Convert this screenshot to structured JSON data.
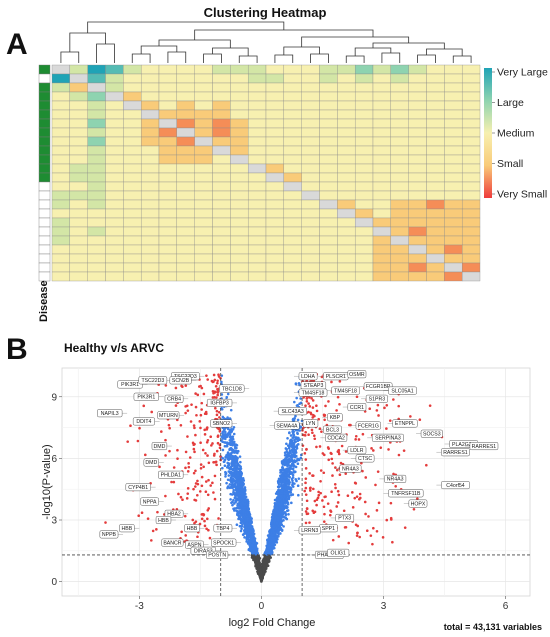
{
  "panel_a_letter": "A",
  "panel_b_letter": "B",
  "chart_data": [
    {
      "type": "heatmap",
      "title": "Clustering Heatmap",
      "annotation_label": "Disease",
      "legend": [
        "Very Large",
        "Large",
        "Medium",
        "Small",
        "Very Small"
      ],
      "colors": {
        "very_large": "#1fa3b6",
        "large": "#8ed3b0",
        "medium": "#f7f0b0",
        "small": "#f9cb79",
        "very_small": "#ee3b3b",
        "diagonal": "#d9d9d9",
        "disease_group": "#1e8c32",
        "control_group": "#ffffff"
      },
      "rows": 24,
      "cols": 24,
      "row_groups": [
        "disease",
        "control",
        "disease",
        "disease",
        "disease",
        "disease",
        "disease",
        "disease",
        "disease",
        "disease",
        "disease",
        "disease",
        "disease",
        "control",
        "control",
        "control",
        "control",
        "control",
        "control",
        "control",
        "control",
        "control",
        "control",
        "control"
      ],
      "matrix": [
        [
          5,
          3,
          0,
          1,
          3,
          4,
          4,
          4,
          4,
          3,
          3,
          3,
          4,
          4,
          4,
          3,
          3,
          2,
          3,
          2,
          3,
          4,
          4,
          4
        ],
        [
          0,
          2,
          1,
          3,
          4,
          4,
          4,
          4,
          4,
          4,
          4,
          3,
          3,
          4,
          4,
          3,
          4,
          3,
          4,
          3,
          4,
          4,
          4,
          4
        ],
        [
          3,
          5,
          2,
          3,
          4,
          4,
          4,
          4,
          4,
          4,
          4,
          4,
          4,
          4,
          4,
          4,
          4,
          4,
          4,
          4,
          4,
          4,
          4,
          4
        ],
        [
          4,
          3,
          2,
          3,
          5,
          4,
          4,
          4,
          4,
          4,
          4,
          4,
          4,
          4,
          4,
          4,
          4,
          4,
          4,
          4,
          4,
          4,
          4,
          4
        ],
        [
          4,
          4,
          3,
          4,
          4,
          5,
          4,
          5,
          4,
          5,
          4,
          4,
          4,
          4,
          4,
          4,
          4,
          4,
          4,
          4,
          4,
          4,
          4,
          4
        ],
        [
          4,
          4,
          3,
          4,
          4,
          4,
          5,
          5,
          5,
          5,
          4,
          4,
          4,
          4,
          4,
          4,
          4,
          4,
          4,
          4,
          4,
          4,
          4,
          4
        ],
        [
          4,
          4,
          2,
          4,
          4,
          5,
          5,
          6,
          5,
          6,
          5,
          4,
          4,
          4,
          4,
          4,
          4,
          4,
          4,
          4,
          4,
          4,
          4,
          4
        ],
        [
          4,
          4,
          3,
          4,
          4,
          5,
          6,
          5,
          5,
          6,
          5,
          4,
          4,
          4,
          4,
          4,
          4,
          4,
          4,
          4,
          4,
          4,
          4,
          4
        ],
        [
          4,
          4,
          2,
          4,
          4,
          5,
          5,
          6,
          5,
          5,
          5,
          4,
          4,
          4,
          4,
          4,
          4,
          4,
          4,
          4,
          4,
          4,
          4,
          4
        ],
        [
          4,
          4,
          3,
          4,
          4,
          4,
          5,
          5,
          5,
          5,
          5,
          4,
          4,
          4,
          4,
          4,
          4,
          4,
          4,
          4,
          4,
          4,
          4,
          4
        ],
        [
          4,
          4,
          3,
          4,
          4,
          4,
          5,
          5,
          5,
          4,
          5,
          4,
          4,
          4,
          4,
          4,
          4,
          4,
          4,
          4,
          4,
          4,
          4,
          4
        ],
        [
          4,
          3,
          3,
          4,
          4,
          4,
          4,
          4,
          4,
          4,
          4,
          5,
          5,
          4,
          4,
          4,
          4,
          4,
          4,
          4,
          4,
          4,
          4,
          4
        ],
        [
          4,
          3,
          3,
          4,
          4,
          4,
          4,
          4,
          4,
          4,
          4,
          4,
          5,
          5,
          4,
          4,
          4,
          4,
          4,
          4,
          4,
          4,
          4,
          4
        ],
        [
          4,
          4,
          3,
          4,
          4,
          4,
          4,
          4,
          4,
          4,
          4,
          4,
          4,
          5,
          4,
          4,
          4,
          4,
          4,
          4,
          4,
          4,
          4,
          4
        ],
        [
          3,
          3,
          3,
          4,
          4,
          4,
          4,
          4,
          4,
          4,
          4,
          4,
          4,
          4,
          5,
          4,
          4,
          4,
          4,
          4,
          4,
          4,
          4,
          4
        ],
        [
          3,
          4,
          3,
          4,
          4,
          4,
          4,
          4,
          4,
          4,
          4,
          4,
          4,
          4,
          4,
          5,
          5,
          4,
          4,
          5,
          5,
          6,
          5,
          5
        ],
        [
          4,
          4,
          4,
          4,
          4,
          4,
          4,
          4,
          4,
          4,
          4,
          4,
          4,
          4,
          4,
          4,
          5,
          5,
          4,
          5,
          5,
          5,
          5,
          5
        ],
        [
          3,
          4,
          4,
          4,
          4,
          4,
          4,
          4,
          4,
          4,
          4,
          4,
          4,
          4,
          4,
          4,
          4,
          5,
          5,
          5,
          5,
          5,
          5,
          5
        ],
        [
          3,
          4,
          3,
          4,
          4,
          4,
          4,
          4,
          4,
          4,
          4,
          4,
          4,
          4,
          4,
          4,
          4,
          4,
          5,
          5,
          6,
          5,
          5,
          5
        ],
        [
          3,
          4,
          4,
          4,
          4,
          4,
          4,
          4,
          4,
          4,
          4,
          4,
          4,
          4,
          4,
          4,
          4,
          4,
          5,
          4,
          5,
          5,
          5,
          5
        ],
        [
          4,
          4,
          4,
          4,
          4,
          4,
          4,
          4,
          4,
          4,
          4,
          4,
          4,
          4,
          4,
          4,
          4,
          4,
          5,
          5,
          4,
          5,
          6,
          5
        ],
        [
          4,
          4,
          4,
          4,
          4,
          4,
          4,
          4,
          4,
          4,
          4,
          4,
          4,
          4,
          4,
          4,
          4,
          4,
          5,
          5,
          5,
          4,
          5,
          5
        ],
        [
          4,
          4,
          4,
          4,
          4,
          4,
          4,
          4,
          4,
          4,
          4,
          4,
          4,
          4,
          4,
          4,
          4,
          4,
          5,
          5,
          6,
          5,
          4,
          6
        ],
        [
          4,
          4,
          4,
          4,
          4,
          4,
          4,
          4,
          4,
          4,
          4,
          4,
          4,
          4,
          4,
          4,
          4,
          4,
          5,
          5,
          5,
          5,
          6,
          4
        ]
      ]
    },
    {
      "type": "scatter",
      "title": "Healthy v/s ARVC",
      "xlabel": "log2 Fold Change",
      "ylabel": "-log10(P-value)",
      "xlim": [
        -4.9,
        6.6
      ],
      "ylim": [
        -0.7,
        10.4
      ],
      "xticks": [
        -3,
        0,
        3,
        6
      ],
      "yticks": [
        0,
        3,
        6,
        9
      ],
      "fold_change_thresholds": [
        -1,
        1
      ],
      "significance_threshold": 1.3,
      "total_text": "total = 43,131 variables",
      "colors": {
        "not_significant": "#4a4a4a",
        "p_value_only": "#3d7fe6",
        "significant": "#e43c3c"
      },
      "labeled_genes": [
        {
          "gene": "LDHA",
          "x": 0.8,
          "y": 10.0
        },
        {
          "gene": "PLSCR1",
          "x": 1.4,
          "y": 10.0
        },
        {
          "gene": "OSMR",
          "x": 2.0,
          "y": 10.1
        },
        {
          "gene": "STEAP3",
          "x": 0.85,
          "y": 9.55
        },
        {
          "gene": "FCGR1BP",
          "x": 2.4,
          "y": 9.5
        },
        {
          "gene": "SLC05A1",
          "x": 3.0,
          "y": 9.3
        },
        {
          "gene": "TM4SF18",
          "x": 1.6,
          "y": 9.3
        },
        {
          "gene": "S1PR3",
          "x": 2.45,
          "y": 8.9
        },
        {
          "gene": "TM4SF18",
          "x": 0.8,
          "y": 9.2
        },
        {
          "gene": "CCR1",
          "x": 2.0,
          "y": 8.5
        },
        {
          "gene": "SLC43A3",
          "x": 0.3,
          "y": 8.3
        },
        {
          "gene": "KBP",
          "x": 1.5,
          "y": 8.0
        },
        {
          "gene": "LYN",
          "x": 0.9,
          "y": 7.7
        },
        {
          "gene": "SEMA4A",
          "x": 0.2,
          "y": 7.6
        },
        {
          "gene": "BCL3",
          "x": 1.4,
          "y": 7.4
        },
        {
          "gene": "FCER1G",
          "x": 2.2,
          "y": 7.6
        },
        {
          "gene": "ETNPPL",
          "x": 3.1,
          "y": 7.7
        },
        {
          "gene": "SOCS3",
          "x": 3.8,
          "y": 7.2
        },
        {
          "gene": "CDCA2",
          "x": 1.45,
          "y": 7.0
        },
        {
          "gene": "SERPINA3",
          "x": 2.6,
          "y": 7.0
        },
        {
          "gene": "PLA2G2A",
          "x": 4.5,
          "y": 6.7
        },
        {
          "gene": "RARRES1",
          "x": 4.3,
          "y": 6.3
        },
        {
          "gene": "LDLR",
          "x": 2.0,
          "y": 6.4
        },
        {
          "gene": "CTSC",
          "x": 2.2,
          "y": 6.0
        },
        {
          "gene": "RARRES1",
          "x": 5.0,
          "y": 6.6
        },
        {
          "gene": "NR4A3",
          "x": 1.8,
          "y": 5.5
        },
        {
          "gene": "NR4A3",
          "x": 2.9,
          "y": 5.0
        },
        {
          "gene": "C4orf54",
          "x": 4.3,
          "y": 4.7
        },
        {
          "gene": "TNFRSF11B",
          "x": 3.0,
          "y": 4.3
        },
        {
          "gene": "HOPX",
          "x": 3.5,
          "y": 3.8
        },
        {
          "gene": "SPP1",
          "x": 1.3,
          "y": 2.6
        },
        {
          "gene": "PTX3",
          "x": 1.7,
          "y": 3.1
        },
        {
          "gene": "LRRN3",
          "x": 0.8,
          "y": 2.5
        },
        {
          "gene": "PHACTR3",
          "x": 1.2,
          "y": 1.3
        },
        {
          "gene": "OLIG1",
          "x": 1.5,
          "y": 1.4
        },
        {
          "gene": "TSC22D3",
          "x": -1.4,
          "y": 10.0
        },
        {
          "gene": "PIK3R1",
          "x": -2.8,
          "y": 9.6
        },
        {
          "gene": "TSC22D3",
          "x": -2.2,
          "y": 9.8
        },
        {
          "gene": "SCN2B",
          "x": -1.6,
          "y": 9.8
        },
        {
          "gene": "TBC1D8",
          "x": -0.3,
          "y": 9.4
        },
        {
          "gene": "PIK3R1",
          "x": -2.4,
          "y": 9.0
        },
        {
          "gene": "CRB4",
          "x": -1.8,
          "y": 8.9
        },
        {
          "gene": "IGFBP3",
          "x": -0.6,
          "y": 8.7
        },
        {
          "gene": "NAPIL3",
          "x": -3.3,
          "y": 8.2
        },
        {
          "gene": "MTURN",
          "x": -1.9,
          "y": 8.1
        },
        {
          "gene": "SBNO2",
          "x": -0.6,
          "y": 7.7
        },
        {
          "gene": "DDIT4",
          "x": -2.5,
          "y": 7.8
        },
        {
          "gene": "DMD",
          "x": -2.2,
          "y": 6.6
        },
        {
          "gene": "DMD",
          "x": -2.4,
          "y": 5.8
        },
        {
          "gene": "PHLDA1",
          "x": -1.8,
          "y": 5.2
        },
        {
          "gene": "CYP4B1",
          "x": -2.6,
          "y": 4.6
        },
        {
          "gene": "NPPA",
          "x": -2.4,
          "y": 3.9
        },
        {
          "gene": "HBA2",
          "x": -1.8,
          "y": 3.3
        },
        {
          "gene": "HBB",
          "x": -2.1,
          "y": 3.0
        },
        {
          "gene": "HBB",
          "x": -1.4,
          "y": 2.6
        },
        {
          "gene": "NPPB",
          "x": -3.4,
          "y": 2.3
        },
        {
          "gene": "HBB",
          "x": -3.0,
          "y": 2.6
        },
        {
          "gene": "BANCR",
          "x": -1.8,
          "y": 1.9
        },
        {
          "gene": "ASPN",
          "x": -1.3,
          "y": 1.8
        },
        {
          "gene": "TBP4",
          "x": -0.6,
          "y": 2.6
        },
        {
          "gene": "SPOCK1",
          "x": -0.5,
          "y": 1.9
        },
        {
          "gene": "DIRAS3",
          "x": -1.0,
          "y": 1.5
        },
        {
          "gene": "POSTN",
          "x": -0.7,
          "y": 1.3
        }
      ]
    }
  ]
}
